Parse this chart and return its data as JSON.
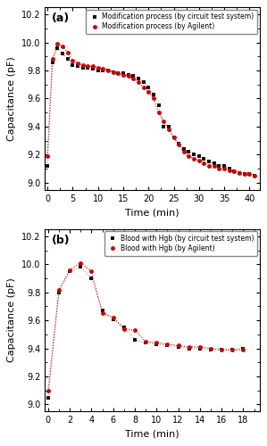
{
  "panel_a": {
    "title": "(a)",
    "xlabel": "Time (min)",
    "ylabel": "Capacitance (pF)",
    "xlim": [
      -0.5,
      42
    ],
    "ylim": [
      8.95,
      10.25
    ],
    "xticks": [
      0,
      5,
      10,
      15,
      20,
      25,
      30,
      35,
      40
    ],
    "yticks": [
      9.0,
      9.2,
      9.4,
      9.6,
      9.8,
      10.0,
      10.2
    ],
    "black_x": [
      0,
      1,
      2,
      3,
      4,
      5,
      6,
      7,
      8,
      9,
      10,
      11,
      12,
      13,
      14,
      15,
      16,
      17,
      18,
      19,
      20,
      21,
      22,
      23,
      24,
      25,
      26,
      27,
      28,
      29,
      30,
      31,
      32,
      33,
      34,
      35,
      36,
      37,
      38,
      39,
      40,
      41
    ],
    "black_y": [
      9.12,
      9.86,
      9.96,
      9.92,
      9.88,
      9.84,
      9.83,
      9.82,
      9.82,
      9.81,
      9.8,
      9.8,
      9.8,
      9.79,
      9.78,
      9.78,
      9.77,
      9.76,
      9.74,
      9.72,
      9.68,
      9.63,
      9.55,
      9.4,
      9.4,
      9.32,
      9.28,
      9.24,
      9.22,
      9.2,
      9.19,
      9.17,
      9.15,
      9.14,
      9.12,
      9.12,
      9.1,
      9.08,
      9.07,
      9.06,
      9.06,
      9.05
    ],
    "red_x": [
      0,
      1,
      2,
      3,
      4,
      5,
      6,
      7,
      8,
      9,
      10,
      11,
      12,
      13,
      14,
      15,
      16,
      17,
      18,
      19,
      20,
      21,
      22,
      23,
      24,
      25,
      26,
      27,
      28,
      29,
      30,
      31,
      32,
      33,
      34,
      35,
      36,
      37,
      38,
      39,
      40,
      41
    ],
    "red_y": [
      9.19,
      9.88,
      9.99,
      9.97,
      9.93,
      9.87,
      9.85,
      9.84,
      9.83,
      9.83,
      9.82,
      9.81,
      9.8,
      9.79,
      9.78,
      9.77,
      9.76,
      9.74,
      9.72,
      9.68,
      9.65,
      9.6,
      9.5,
      9.44,
      9.38,
      9.32,
      9.27,
      9.22,
      9.19,
      9.17,
      9.16,
      9.14,
      9.12,
      9.12,
      9.1,
      9.1,
      9.09,
      9.08,
      9.07,
      9.06,
      9.06,
      9.05
    ],
    "legend1": "Modification process (by circuit test system)",
    "legend2": "Modification process (by Agilent)"
  },
  "panel_b": {
    "title": "(b)",
    "xlabel": "Time (min)",
    "ylabel": "Capacitance (pF)",
    "xlim": [
      -0.3,
      19.5
    ],
    "ylim": [
      8.95,
      10.25
    ],
    "xticks": [
      0,
      2,
      4,
      6,
      8,
      10,
      12,
      14,
      16,
      18
    ],
    "yticks": [
      9.0,
      9.2,
      9.4,
      9.6,
      9.8,
      10.0,
      10.2
    ],
    "black_x": [
      0,
      1,
      2,
      3,
      4,
      5,
      6,
      7,
      8,
      9,
      10,
      11,
      12,
      13,
      14,
      15,
      16,
      17,
      18
    ],
    "black_y": [
      9.05,
      9.8,
      9.95,
      9.98,
      9.9,
      9.67,
      9.61,
      9.55,
      9.46,
      9.44,
      9.43,
      9.42,
      9.41,
      9.4,
      9.4,
      9.39,
      9.39,
      9.39,
      9.4
    ],
    "red_x": [
      0,
      1,
      2,
      3,
      4,
      5,
      6,
      7,
      8,
      9,
      10,
      11,
      12,
      13,
      14,
      15,
      16,
      17,
      18
    ],
    "red_y": [
      9.1,
      9.82,
      9.96,
      10.01,
      9.95,
      9.65,
      9.62,
      9.54,
      9.53,
      9.45,
      9.44,
      9.43,
      9.42,
      9.41,
      9.41,
      9.4,
      9.39,
      9.39,
      9.39
    ],
    "legend1": "Blood with Hgb (by circuit test system)",
    "legend2": "Blood with Hgb (by Agilent)"
  },
  "black_color": "#111111",
  "red_color": "#cc0000",
  "line_gray": "#999999",
  "line_red": "#cc0000",
  "marker_size": 3.5,
  "linewidth": 0.8,
  "legend_fontsize": 5.5,
  "tick_labelsize": 7,
  "label_fontsize": 8,
  "panel_label_fontsize": 9
}
